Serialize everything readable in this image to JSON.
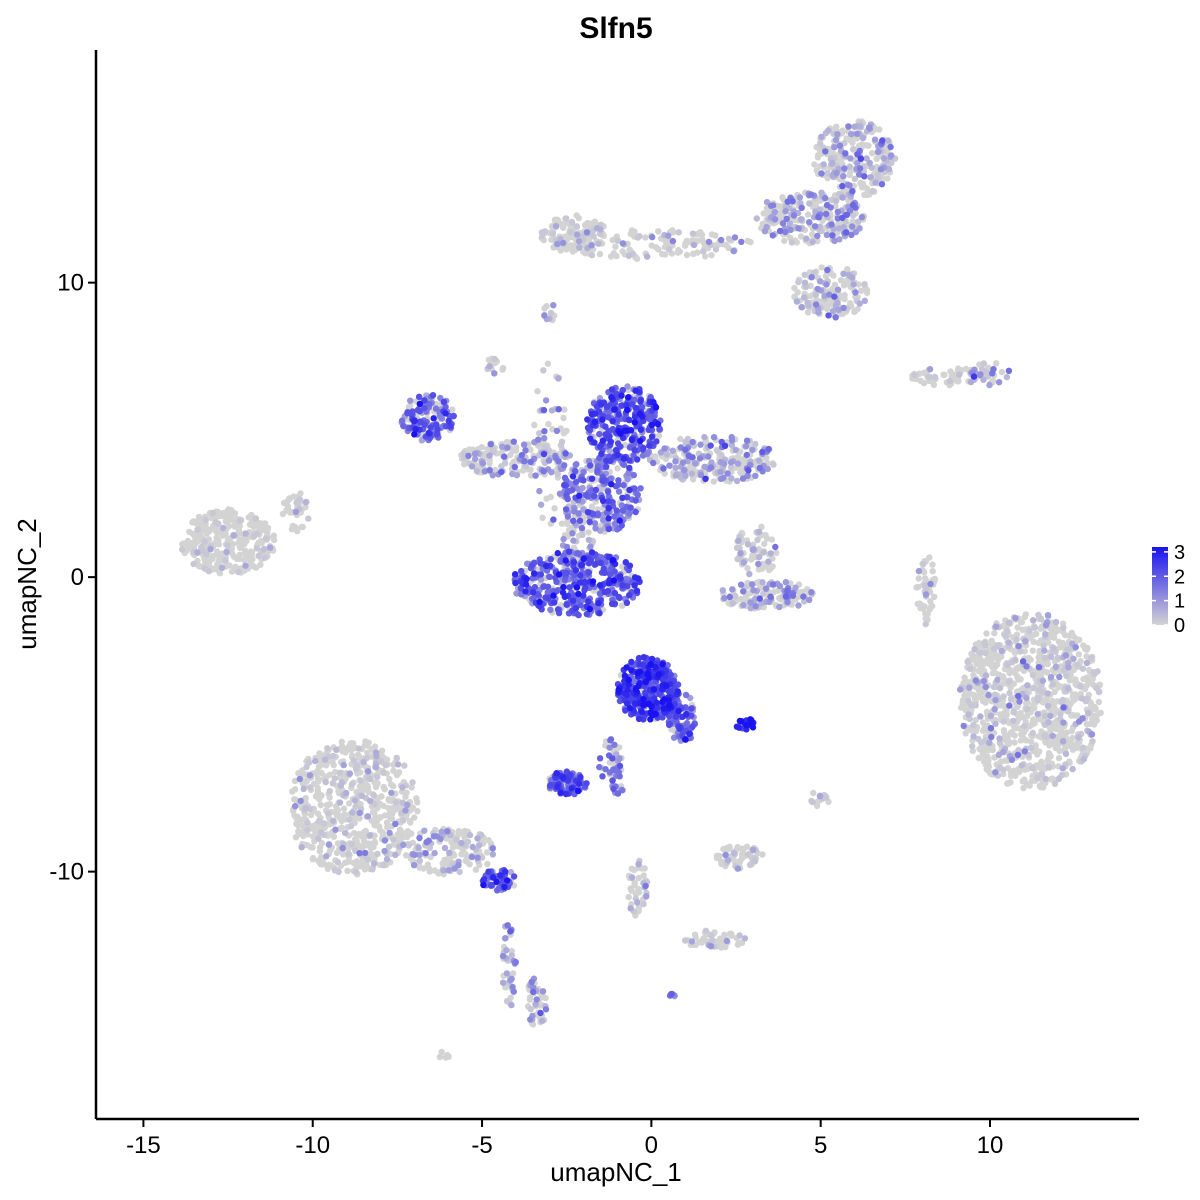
{
  "chart_data": {
    "type": "scatter",
    "title": "Slfn5",
    "xlabel": "umapNC_1",
    "ylabel": "umapNC_2",
    "xlim": [
      -16.4,
      14.4
    ],
    "ylim": [
      -18.4,
      17.9
    ],
    "x_ticks": [
      -15,
      -10,
      -5,
      0,
      5,
      10
    ],
    "x_tick_labels": [
      "-15",
      "-10",
      "-5",
      "0",
      "5",
      "10"
    ],
    "y_ticks": [
      -10,
      0,
      10
    ],
    "y_tick_labels": [
      "-10",
      "0",
      "10"
    ],
    "color_scale": {
      "low": "#d3d3d3",
      "high": "#1a12f0",
      "min": 0,
      "max": 3.2,
      "ticks": [
        0,
        1,
        2,
        3
      ],
      "tick_labels": [
        "0",
        "1",
        "2",
        "3"
      ]
    },
    "legend_placement": "right",
    "grid": false,
    "clusters": [
      {
        "cx": 11.2,
        "cy": -4.2,
        "rx": 2.1,
        "ry": 3.0,
        "n": 1000,
        "expr": 0.22
      },
      {
        "cx": -12.5,
        "cy": 1.2,
        "rx": 1.4,
        "ry": 1.1,
        "n": 300,
        "expr": 0.05
      },
      {
        "cx": -10.5,
        "cy": 2.2,
        "rx": 0.4,
        "ry": 0.7,
        "n": 35,
        "expr": 0.05
      },
      {
        "cx": -8.8,
        "cy": -7.8,
        "rx": 1.9,
        "ry": 2.3,
        "n": 600,
        "expr": 0.1
      },
      {
        "cx": -6.0,
        "cy": -9.3,
        "rx": 1.4,
        "ry": 0.8,
        "n": 150,
        "expr": 0.7
      },
      {
        "cx": -4.5,
        "cy": -10.3,
        "rx": 0.5,
        "ry": 0.4,
        "n": 50,
        "expr": 2.0
      },
      {
        "cx": -4.2,
        "cy": -13.1,
        "rx": 0.2,
        "ry": 1.6,
        "n": 40,
        "expr": 1.0
      },
      {
        "cx": -3.4,
        "cy": -14.5,
        "rx": 0.3,
        "ry": 0.9,
        "n": 50,
        "expr": 0.9
      },
      {
        "cx": -2.2,
        "cy": -0.2,
        "rx": 1.9,
        "ry": 1.1,
        "n": 420,
        "expr": 1.9
      },
      {
        "cx": -6.6,
        "cy": 5.4,
        "rx": 0.8,
        "ry": 0.8,
        "n": 150,
        "expr": 1.6
      },
      {
        "cx": -4.0,
        "cy": 4.0,
        "rx": 1.7,
        "ry": 0.6,
        "n": 170,
        "expr": 0.6
      },
      {
        "cx": -0.8,
        "cy": 5.2,
        "rx": 1.1,
        "ry": 1.3,
        "n": 320,
        "expr": 2.1
      },
      {
        "cx": -1.5,
        "cy": 2.8,
        "rx": 1.2,
        "ry": 1.3,
        "n": 260,
        "expr": 1.5
      },
      {
        "cx": 1.8,
        "cy": 4.0,
        "rx": 1.9,
        "ry": 0.8,
        "n": 240,
        "expr": 0.8
      },
      {
        "cx": -3.0,
        "cy": 4.5,
        "rx": 0.5,
        "ry": 2.8,
        "n": 60,
        "expr": 0.7
      },
      {
        "cx": -2.2,
        "cy": 1.2,
        "rx": 0.5,
        "ry": 1.5,
        "n": 70,
        "expr": 0.7
      },
      {
        "cx": -0.1,
        "cy": -3.8,
        "rx": 0.9,
        "ry": 1.1,
        "n": 340,
        "expr": 2.3
      },
      {
        "cx": 0.9,
        "cy": -4.8,
        "rx": 0.4,
        "ry": 0.9,
        "n": 90,
        "expr": 1.9
      },
      {
        "cx": -1.2,
        "cy": -6.2,
        "rx": 0.4,
        "ry": 0.8,
        "n": 40,
        "expr": 1.6
      },
      {
        "cx": -2.5,
        "cy": -7.0,
        "rx": 0.6,
        "ry": 0.4,
        "n": 110,
        "expr": 2.0
      },
      {
        "cx": -1.0,
        "cy": -7.2,
        "rx": 0.2,
        "ry": 0.2,
        "n": 12,
        "expr": 1.2
      },
      {
        "cx": 3.4,
        "cy": -0.6,
        "rx": 1.4,
        "ry": 0.5,
        "n": 130,
        "expr": 0.9
      },
      {
        "cx": 3.1,
        "cy": 0.9,
        "rx": 0.6,
        "ry": 0.9,
        "n": 70,
        "expr": 0.5
      },
      {
        "cx": 2.8,
        "cy": -5.0,
        "rx": 0.3,
        "ry": 0.2,
        "n": 20,
        "expr": 3.0
      },
      {
        "cx": 6.0,
        "cy": 14.2,
        "rx": 1.2,
        "ry": 1.3,
        "n": 260,
        "expr": 0.7
      },
      {
        "cx": 4.7,
        "cy": 12.2,
        "rx": 1.6,
        "ry": 0.9,
        "n": 240,
        "expr": 0.9
      },
      {
        "cx": 5.3,
        "cy": 9.7,
        "rx": 1.1,
        "ry": 0.9,
        "n": 150,
        "expr": 0.7
      },
      {
        "cx": 0.0,
        "cy": 11.3,
        "rx": 3.0,
        "ry": 0.5,
        "n": 140,
        "expr": 0.3
      },
      {
        "cx": -2.3,
        "cy": 11.7,
        "rx": 1.0,
        "ry": 0.6,
        "n": 110,
        "expr": 0.1
      },
      {
        "cx": 8.8,
        "cy": 6.8,
        "rx": 1.2,
        "ry": 0.3,
        "n": 55,
        "expr": 0.4
      },
      {
        "cx": 10.0,
        "cy": 6.9,
        "rx": 0.6,
        "ry": 0.4,
        "n": 35,
        "expr": 1.0
      },
      {
        "cx": 8.1,
        "cy": -0.4,
        "rx": 0.3,
        "ry": 1.2,
        "n": 50,
        "expr": 0.05
      },
      {
        "cx": 5.0,
        "cy": -7.5,
        "rx": 0.3,
        "ry": 0.3,
        "n": 15,
        "expr": 0.3
      },
      {
        "cx": 2.6,
        "cy": -9.5,
        "rx": 0.7,
        "ry": 0.4,
        "n": 60,
        "expr": 0.2
      },
      {
        "cx": 1.8,
        "cy": -12.3,
        "rx": 1.0,
        "ry": 0.3,
        "n": 50,
        "expr": 0.1
      },
      {
        "cx": -0.4,
        "cy": -10.6,
        "rx": 0.3,
        "ry": 1.0,
        "n": 40,
        "expr": 0.5
      },
      {
        "cx": -3.0,
        "cy": 9.0,
        "rx": 0.2,
        "ry": 0.3,
        "n": 10,
        "expr": 0.6
      },
      {
        "cx": -4.6,
        "cy": 7.2,
        "rx": 0.3,
        "ry": 0.3,
        "n": 15,
        "expr": 0.2
      },
      {
        "cx": 0.6,
        "cy": -14.2,
        "rx": 0.1,
        "ry": 0.1,
        "n": 6,
        "expr": 0.9
      },
      {
        "cx": -6.1,
        "cy": -16.3,
        "rx": 0.2,
        "ry": 0.2,
        "n": 6,
        "expr": 0.1
      }
    ]
  }
}
